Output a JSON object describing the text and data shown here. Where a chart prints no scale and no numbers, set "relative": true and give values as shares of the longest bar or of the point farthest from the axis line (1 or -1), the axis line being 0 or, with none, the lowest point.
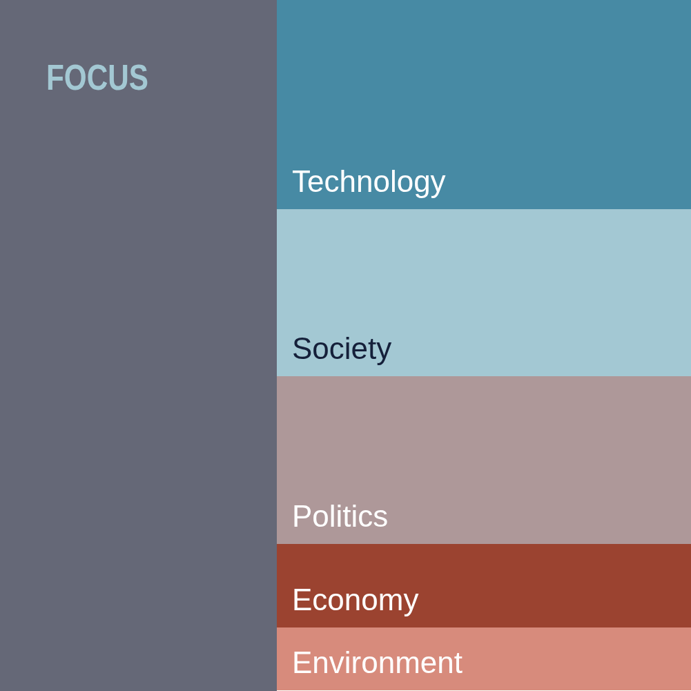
{
  "chart_data": {
    "type": "bar",
    "title": "FOCUS",
    "categories": [
      null
    ],
    "stacked": true,
    "relative": true,
    "series": [
      {
        "name": "Environment",
        "color": "#d78b7c",
        "values": [
          0.091
        ]
      },
      {
        "name": "Economy",
        "color": "#9b4330",
        "values": [
          0.121
        ]
      },
      {
        "name": "Politics",
        "color": "#ae9899",
        "values": [
          0.243
        ]
      },
      {
        "name": "Society",
        "color": "#a3c8d3",
        "values": [
          0.242
        ]
      },
      {
        "name": "Technology",
        "color": "#478aa4",
        "values": [
          0.303
        ]
      }
    ]
  }
}
